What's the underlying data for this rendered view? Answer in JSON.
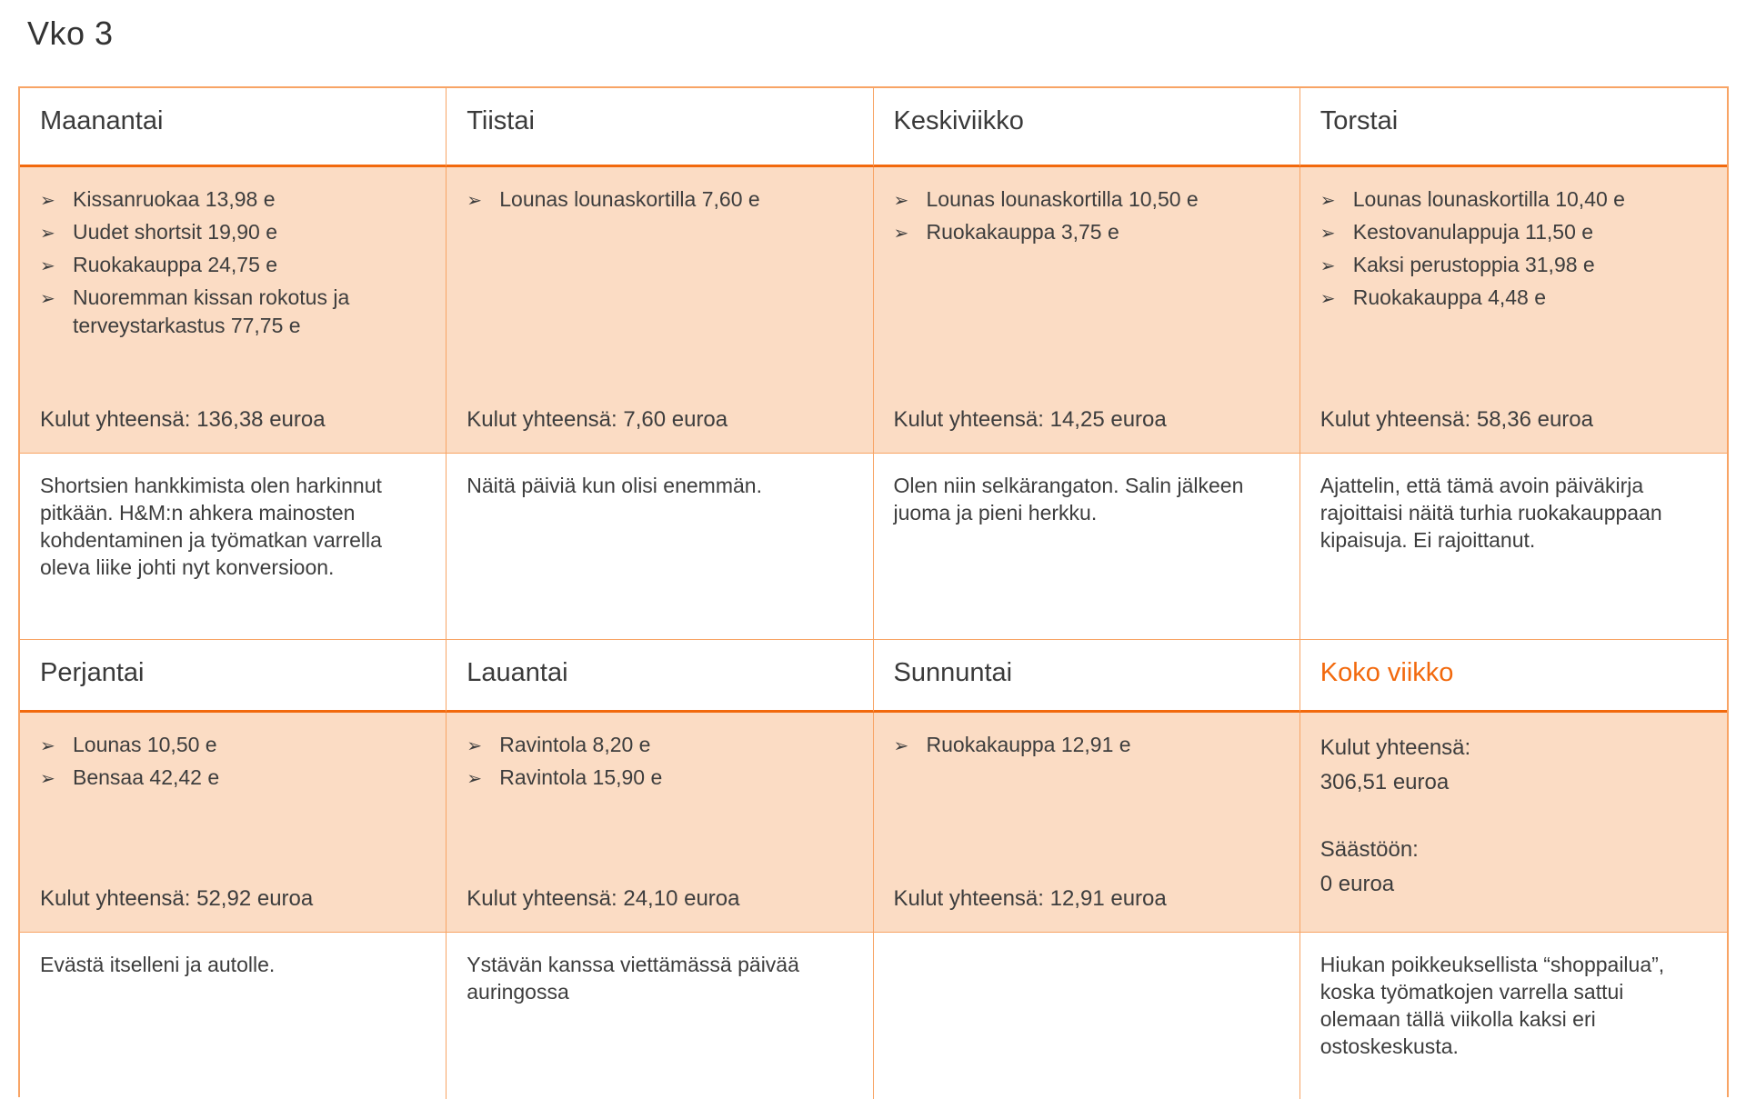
{
  "title": "Vko 3",
  "bullet_glyph": "➢",
  "colors": {
    "accent_orange": "#f2690d",
    "border_light_orange": "#f8a465",
    "expense_cell_background": "#fbdcc4",
    "text_dark": "#3d3d3d"
  },
  "days": [
    {
      "name": "Maanantai",
      "expenses": [
        "Kissanruokaa 13,98 e",
        "Uudet shortsit 19,90 e",
        "Ruokakauppa 24,75 e",
        "Nuoremman kissan rokotus ja terveystarkastus 77,75 e"
      ],
      "total": "Kulut yhteensä: 136,38 euroa",
      "comment": "Shortsien hankkimista olen harkinnut pitkään. H&M:n ahkera mainosten kohdentaminen ja työmatkan varrella oleva liike johti nyt konversioon."
    },
    {
      "name": "Tiistai",
      "expenses": [
        "Lounas lounaskortilla 7,60 e"
      ],
      "total": "Kulut yhteensä: 7,60 euroa",
      "comment": "Näitä päiviä kun olisi enemmän."
    },
    {
      "name": "Keskiviikko",
      "expenses": [
        "Lounas lounaskortilla 10,50 e",
        "Ruokakauppa 3,75 e"
      ],
      "total": "Kulut yhteensä: 14,25 euroa",
      "comment": "Olen niin selkärangaton. Salin jälkeen juoma ja pieni herkku."
    },
    {
      "name": "Torstai",
      "expenses": [
        "Lounas lounaskortilla 10,40 e",
        "Kestovanulappuja 11,50 e",
        "Kaksi perustoppia 31,98 e",
        "Ruokakauppa 4,48 e"
      ],
      "total": "Kulut yhteensä: 58,36 euroa",
      "comment": "Ajattelin, että tämä avoin päiväkirja rajoittaisi näitä turhia ruokakauppaan kipaisuja. Ei rajoittanut."
    },
    {
      "name": "Perjantai",
      "expenses": [
        "Lounas 10,50 e",
        "Bensaa 42,42 e"
      ],
      "total": "Kulut yhteensä: 52,92 euroa",
      "comment": "Evästä itselleni ja autolle."
    },
    {
      "name": "Lauantai",
      "expenses": [
        "Ravintola 8,20 e",
        "Ravintola 15,90 e"
      ],
      "total": "Kulut yhteensä: 24,10 euroa",
      "comment": "Ystävän kanssa viettämässä päivää auringossa"
    },
    {
      "name": "Sunnuntai",
      "expenses": [
        "Ruokakauppa 12,91 e"
      ],
      "total": "Kulut yhteensä: 12,91 euroa",
      "comment": ""
    }
  ],
  "week_summary": {
    "name": "Koko viikko",
    "total_label": "Kulut yhteensä:",
    "total_value": "306,51 euroa",
    "savings_label": "Säästöön:",
    "savings_value": "0 euroa",
    "comment": "Hiukan poikkeuksellista “shoppailua”, koska työmatkojen varrella sattui olemaan tällä viikolla kaksi eri ostoskeskusta."
  }
}
